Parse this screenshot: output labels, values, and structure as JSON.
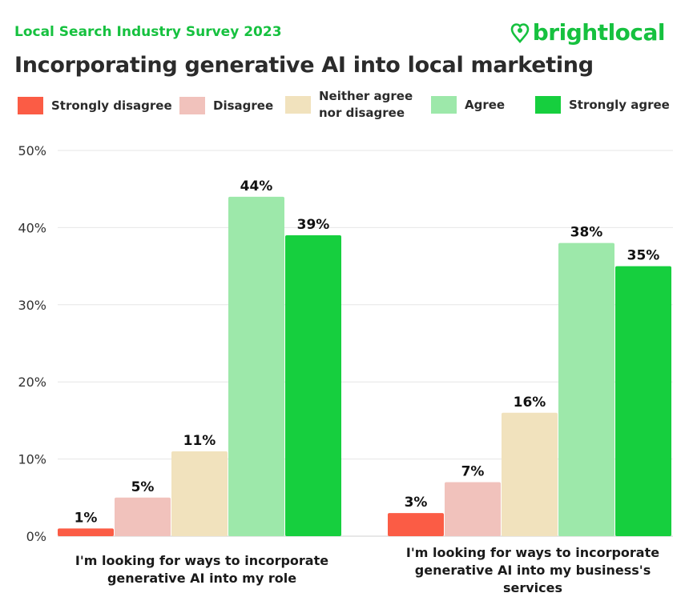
{
  "header": {
    "survey": "Local Search Industry Survey 2023",
    "brand": "brightlocal",
    "title": "Incorporating generative AI into local marketing"
  },
  "legend": [
    {
      "label": "Strongly disagree",
      "color": "#fb5c45"
    },
    {
      "label": "Disagree",
      "color": "#f1c2bc"
    },
    {
      "label": "Neither agree\nnor disagree",
      "color": "#f1e2bd"
    },
    {
      "label": "Agree",
      "color": "#9de8aa"
    },
    {
      "label": "Strongly agree",
      "color": "#16cf3e"
    }
  ],
  "chart_data": {
    "type": "bar",
    "title": "Incorporating generative AI into local marketing",
    "categories": [
      "I'm looking for ways to incorporate\ngenerative AI into my role",
      "I'm looking for ways to incorporate\ngenerative AI into my business's\nservices"
    ],
    "series": [
      {
        "name": "Strongly disagree",
        "values": [
          1,
          3
        ],
        "color": "#fb5c45"
      },
      {
        "name": "Disagree",
        "values": [
          5,
          7
        ],
        "color": "#f1c2bc"
      },
      {
        "name": "Neither agree nor disagree",
        "values": [
          11,
          16
        ],
        "color": "#f1e2bd"
      },
      {
        "name": "Agree",
        "values": [
          44,
          38
        ],
        "color": "#9de8aa"
      },
      {
        "name": "Strongly agree",
        "values": [
          39,
          35
        ],
        "color": "#16cf3e"
      }
    ],
    "value_suffix": "%",
    "ylim": [
      0,
      50
    ],
    "yticks": [
      "0%",
      "10%",
      "20%",
      "30%",
      "40%",
      "50%"
    ],
    "grid": true,
    "xlabel": "",
    "ylabel": ""
  }
}
